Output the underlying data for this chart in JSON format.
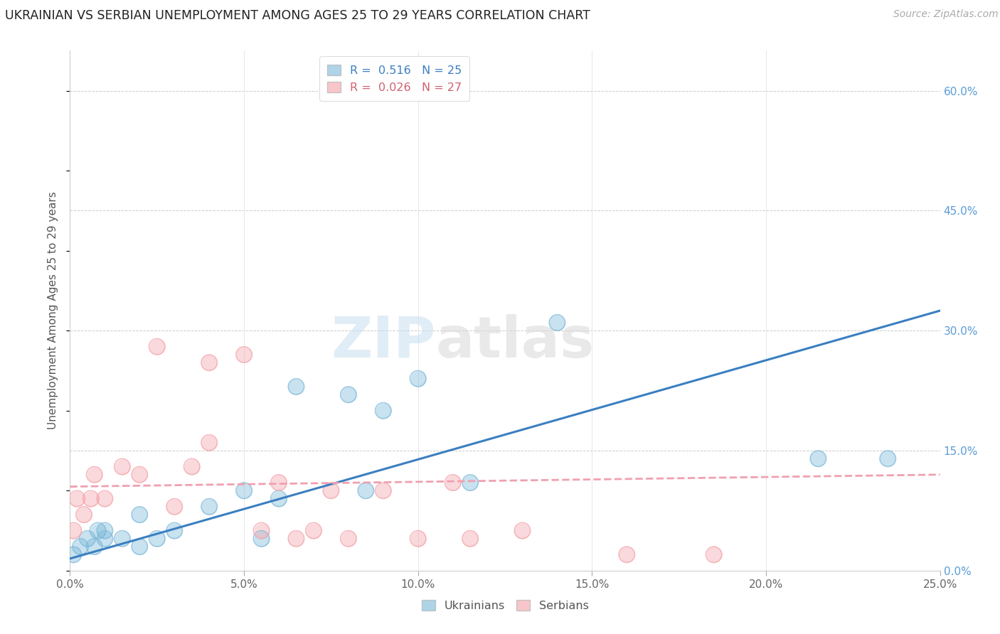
{
  "title": "UKRAINIAN VS SERBIAN UNEMPLOYMENT AMONG AGES 25 TO 29 YEARS CORRELATION CHART",
  "source": "Source: ZipAtlas.com",
  "ylabel": "Unemployment Among Ages 25 to 29 years",
  "xlim": [
    0.0,
    0.25
  ],
  "ylim": [
    0.0,
    0.65
  ],
  "xticks": [
    0.0,
    0.05,
    0.1,
    0.15,
    0.2,
    0.25
  ],
  "yticks_right": [
    0.0,
    0.15,
    0.3,
    0.45,
    0.6
  ],
  "watermark_zip": "ZIP",
  "watermark_atlas": "atlas",
  "ukrainian_R": 0.516,
  "ukrainian_N": 25,
  "serbian_R": 0.026,
  "serbian_N": 27,
  "ukrainian_color": "#7ab8d9",
  "serbian_color": "#f4a0a8",
  "blue_line_color": "#3a7fc1",
  "pink_line_color": "#f0a0b0",
  "ukrainian_x": [
    0.001,
    0.003,
    0.005,
    0.007,
    0.008,
    0.01,
    0.01,
    0.015,
    0.02,
    0.02,
    0.025,
    0.03,
    0.04,
    0.05,
    0.055,
    0.06,
    0.065,
    0.08,
    0.085,
    0.09,
    0.1,
    0.115,
    0.14,
    0.215,
    0.235
  ],
  "ukrainian_y": [
    0.02,
    0.03,
    0.04,
    0.03,
    0.05,
    0.04,
    0.05,
    0.04,
    0.03,
    0.07,
    0.04,
    0.05,
    0.08,
    0.1,
    0.04,
    0.09,
    0.23,
    0.22,
    0.1,
    0.2,
    0.24,
    0.11,
    0.31,
    0.14,
    0.14
  ],
  "serbian_x": [
    0.001,
    0.002,
    0.004,
    0.006,
    0.007,
    0.01,
    0.015,
    0.02,
    0.025,
    0.03,
    0.035,
    0.04,
    0.04,
    0.05,
    0.055,
    0.06,
    0.065,
    0.07,
    0.075,
    0.08,
    0.09,
    0.1,
    0.11,
    0.115,
    0.13,
    0.16,
    0.185
  ],
  "serbian_y": [
    0.05,
    0.09,
    0.07,
    0.09,
    0.12,
    0.09,
    0.13,
    0.12,
    0.28,
    0.08,
    0.13,
    0.16,
    0.26,
    0.27,
    0.05,
    0.11,
    0.04,
    0.05,
    0.1,
    0.04,
    0.1,
    0.04,
    0.11,
    0.04,
    0.05,
    0.02,
    0.02
  ],
  "blue_line_x": [
    0.0,
    0.25
  ],
  "blue_line_y": [
    0.015,
    0.325
  ],
  "pink_line_x": [
    0.0,
    0.25
  ],
  "pink_line_y": [
    0.105,
    0.12
  ]
}
